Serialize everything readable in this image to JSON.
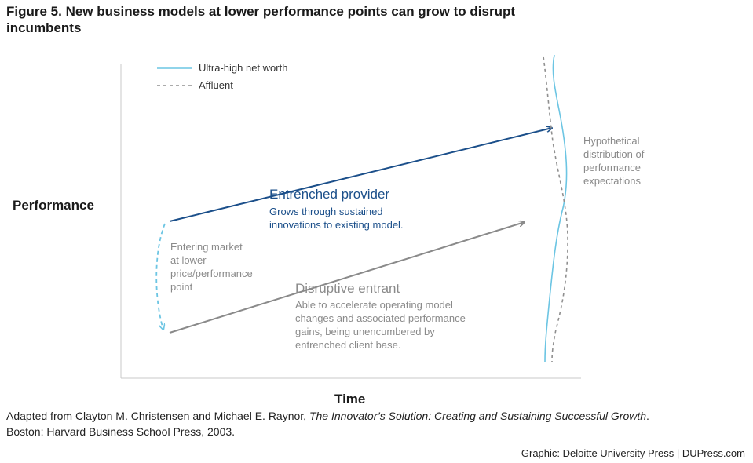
{
  "title": "Figure 5. New business models at lower performance points can grow to disrupt incumbents",
  "axes": {
    "y_label": "Performance",
    "x_label": "Time"
  },
  "legend": {
    "ultra_label": "Ultra-high net worth",
    "affluent_label": "Affluent"
  },
  "entrenched": {
    "title": "Entrenched provider",
    "desc_line1": "Grows through sustained",
    "desc_line2": "innovations to existing model."
  },
  "entering": {
    "line1": "Entering market",
    "line2": "at lower",
    "line3": "price/performance",
    "line4": "point"
  },
  "disruptive": {
    "title": "Disruptive entrant",
    "desc_line1": "Able to accelerate operating model",
    "desc_line2": "changes and associated performance",
    "desc_line3": "gains, being unencumbered by",
    "desc_line4": "entrenched client base."
  },
  "distribution": {
    "line1": "Hypothetical",
    "line2": "distribution of",
    "line3": "performance",
    "line4": "expectations"
  },
  "caption": {
    "prefix": "Adapted from Clayton M. Christensen and Michael E. Raynor, ",
    "book": "The Innovator’s Solution: Creating and Sustaining Successful Growth",
    "suffix": ".",
    "line2": "Boston: Harvard Business School Press, 2003."
  },
  "credit": "Graphic: Deloitte University Press  |  DUPress.com",
  "colors": {
    "entrenched": "#1b4f8a",
    "disruptive": "#8a8a8a",
    "ultra": "#6cc5e3",
    "affluent": "#8f8f8f",
    "entering_arrow": "#6cc5e3"
  }
}
